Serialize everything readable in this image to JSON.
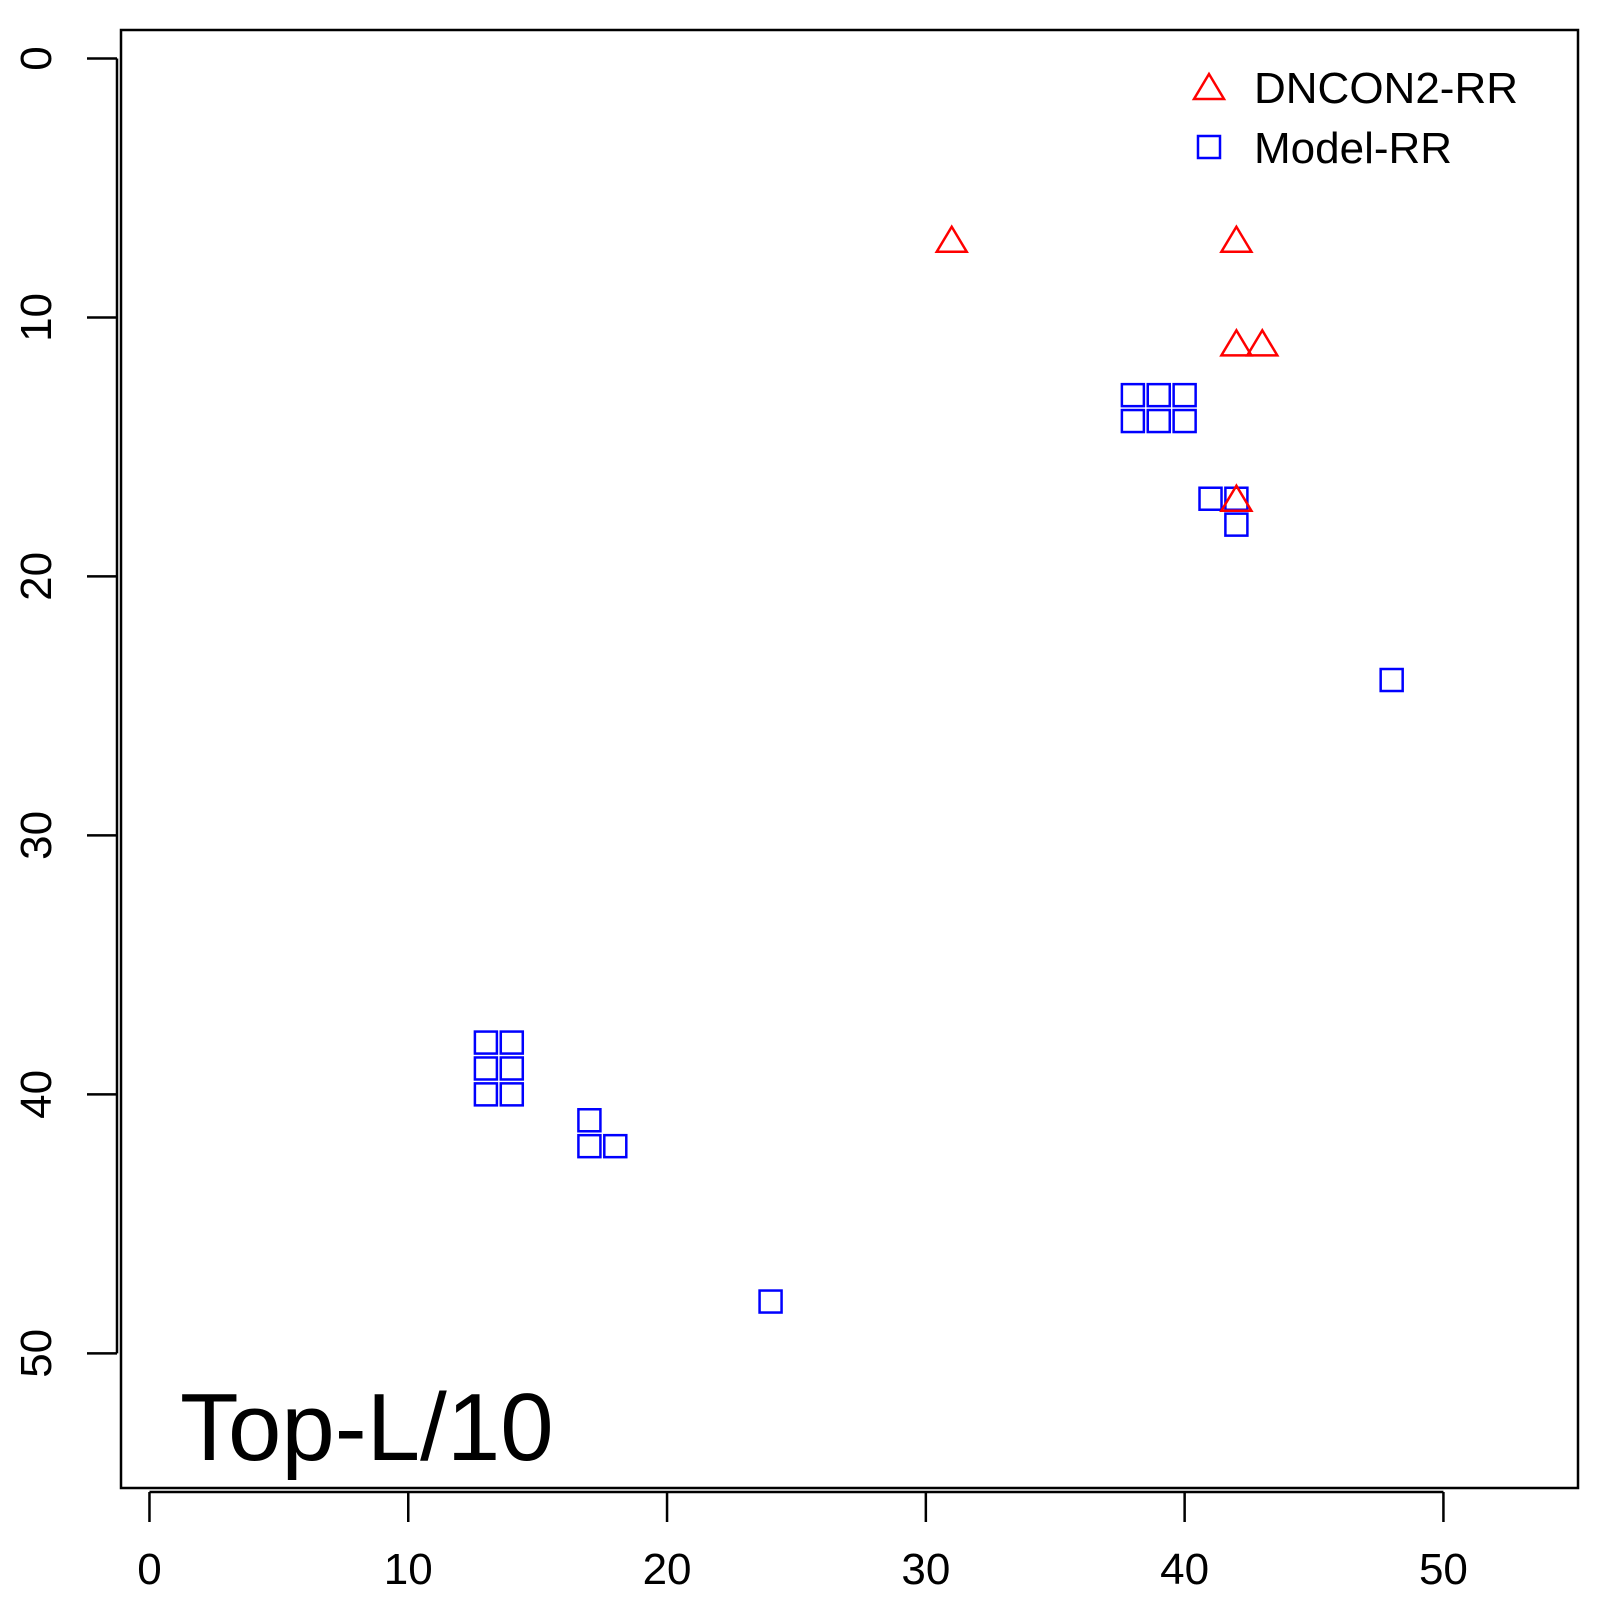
{
  "chart_data": {
    "type": "scatter",
    "panel_label": "Top-L/10",
    "xlim": [
      -1.1,
      55.2
    ],
    "ylim": [
      -1.1,
      55.2
    ],
    "y_reversed": true,
    "x_ticks": [
      0,
      10,
      20,
      30,
      40,
      50
    ],
    "y_ticks": [
      0,
      10,
      20,
      30,
      40,
      50
    ],
    "grid": false,
    "legend_position": "top-right",
    "series": [
      {
        "name": "DNCON2-RR",
        "marker": "triangle",
        "color": "#ff0000",
        "points": [
          {
            "x": 31,
            "y": 7
          },
          {
            "x": 42,
            "y": 7
          },
          {
            "x": 42,
            "y": 11
          },
          {
            "x": 43,
            "y": 11
          },
          {
            "x": 42,
            "y": 17
          }
        ]
      },
      {
        "name": "Model-RR",
        "marker": "square",
        "color": "#0000ff",
        "points": [
          {
            "x": 38,
            "y": 13
          },
          {
            "x": 39,
            "y": 13
          },
          {
            "x": 40,
            "y": 13
          },
          {
            "x": 38,
            "y": 14
          },
          {
            "x": 39,
            "y": 14
          },
          {
            "x": 40,
            "y": 14
          },
          {
            "x": 41,
            "y": 17
          },
          {
            "x": 42,
            "y": 17
          },
          {
            "x": 42,
            "y": 18
          },
          {
            "x": 48,
            "y": 24
          },
          {
            "x": 13,
            "y": 38
          },
          {
            "x": 14,
            "y": 38
          },
          {
            "x": 13,
            "y": 39
          },
          {
            "x": 14,
            "y": 39
          },
          {
            "x": 13,
            "y": 40
          },
          {
            "x": 14,
            "y": 40
          },
          {
            "x": 17,
            "y": 41
          },
          {
            "x": 17,
            "y": 42
          },
          {
            "x": 18,
            "y": 42
          },
          {
            "x": 24,
            "y": 48
          }
        ]
      }
    ]
  }
}
